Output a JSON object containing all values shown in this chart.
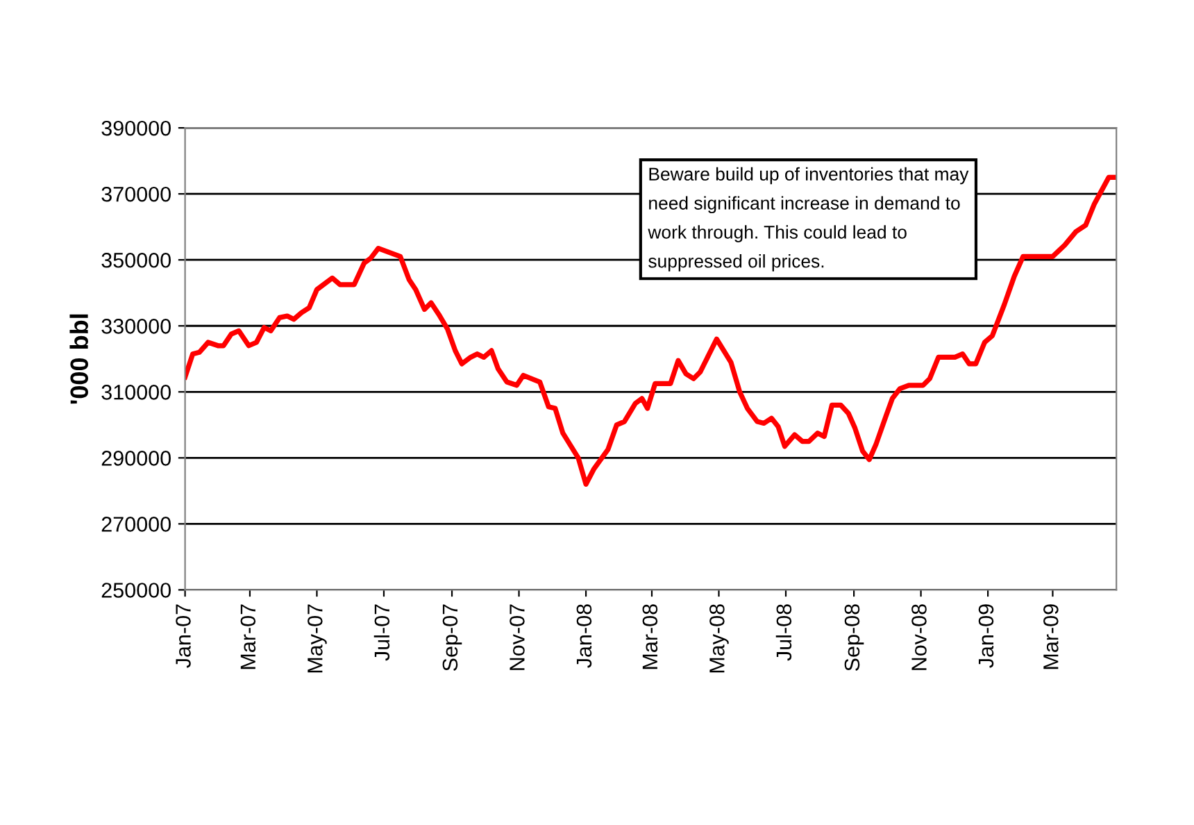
{
  "chart_data": {
    "type": "line",
    "ylabel": "'000 bbl",
    "annotations": [
      "Beware build up of inventories that may\nneed significant increase in demand to\nwork through. This could lead to\nsuppressed oil prices."
    ],
    "x": [
      "2007-01-01",
      "2007-01-08",
      "2007-01-14",
      "2007-01-22",
      "2007-01-31",
      "2007-02-05",
      "2007-02-12",
      "2007-02-19",
      "2007-02-28",
      "2007-03-07",
      "2007-03-14",
      "2007-03-20",
      "2007-03-28",
      "2007-04-04",
      "2007-04-10",
      "2007-04-17",
      "2007-04-24",
      "2007-05-01",
      "2007-05-15",
      "2007-05-22",
      "2007-06-04",
      "2007-06-13",
      "2007-06-19",
      "2007-06-26",
      "2007-07-16",
      "2007-07-24",
      "2007-07-30",
      "2007-08-07",
      "2007-08-13",
      "2007-08-20",
      "2007-08-28",
      "2007-09-04",
      "2007-09-10",
      "2007-09-18",
      "2007-09-24",
      "2007-09-30",
      "2007-10-07",
      "2007-10-13",
      "2007-10-21",
      "2007-10-30",
      "2007-11-05",
      "2007-11-20",
      "2007-11-28",
      "2007-12-04",
      "2007-12-11",
      "2007-12-25",
      "2008-01-01",
      "2008-01-08",
      "2008-01-21",
      "2008-01-29",
      "2008-02-05",
      "2008-02-15",
      "2008-02-21",
      "2008-02-26",
      "2008-03-04",
      "2008-03-18",
      "2008-03-25",
      "2008-04-01",
      "2008-04-08",
      "2008-04-14",
      "2008-04-20",
      "2008-04-29",
      "2008-05-12",
      "2008-05-20",
      "2008-05-27",
      "2008-06-05",
      "2008-06-11",
      "2008-06-18",
      "2008-06-24",
      "2008-06-30",
      "2008-07-09",
      "2008-07-16",
      "2008-07-22",
      "2008-07-30",
      "2008-08-05",
      "2008-08-12",
      "2008-08-20",
      "2008-08-27",
      "2008-09-02",
      "2008-09-09",
      "2008-09-15",
      "2008-09-21",
      "2008-09-30",
      "2008-10-06",
      "2008-10-13",
      "2008-10-21",
      "2008-11-03",
      "2008-11-09",
      "2008-11-17",
      "2008-12-02",
      "2008-12-09",
      "2008-12-15",
      "2008-12-21",
      "2008-12-29",
      "2009-01-05",
      "2009-01-16",
      "2009-01-25",
      "2009-02-02",
      "2009-03-01",
      "2009-03-12",
      "2009-03-22",
      "2009-03-31",
      "2009-04-08",
      "2009-04-21",
      "2009-04-28"
    ],
    "series": [
      {
        "color": "#ff0000",
        "values": [
          314500,
          321500,
          322000,
          325000,
          324000,
          324000,
          327500,
          328500,
          324000,
          325000,
          329500,
          328500,
          332500,
          333000,
          332000,
          334000,
          335500,
          341000,
          344500,
          342500,
          342500,
          349000,
          350500,
          353500,
          351000,
          344000,
          341000,
          335000,
          337000,
          333500,
          329000,
          322500,
          318500,
          320500,
          321500,
          320500,
          322500,
          317000,
          313000,
          312000,
          315000,
          313000,
          305500,
          305000,
          297500,
          290000,
          282000,
          286500,
          292500,
          300000,
          301000,
          306500,
          308000,
          305000,
          312500,
          312500,
          319500,
          315500,
          314000,
          316000,
          320000,
          326000,
          319000,
          310000,
          305000,
          301000,
          300500,
          302000,
          299500,
          293500,
          297000,
          295000,
          295000,
          297500,
          296500,
          306000,
          306000,
          303500,
          299000,
          292000,
          289500,
          294000,
          302500,
          308000,
          311000,
          312000,
          312000,
          314000,
          320500,
          320500,
          321500,
          318500,
          318500,
          325000,
          327000,
          336500,
          345000,
          351000,
          351000,
          354500,
          358500,
          360500,
          367000,
          375000,
          375000
        ]
      }
    ],
    "xlim": [
      "2007-01-01",
      "2009-04-28"
    ],
    "xticks": [
      {
        "value": "2007-01-01",
        "label": "Jan-07"
      },
      {
        "value": "2007-03-01",
        "label": "Mar-07"
      },
      {
        "value": "2007-05-01",
        "label": "May-07"
      },
      {
        "value": "2007-07-01",
        "label": "Jul-07"
      },
      {
        "value": "2007-09-01",
        "label": "Sep-07"
      },
      {
        "value": "2007-11-01",
        "label": "Nov-07"
      },
      {
        "value": "2008-01-01",
        "label": "Jan-08"
      },
      {
        "value": "2008-03-01",
        "label": "Mar-08"
      },
      {
        "value": "2008-05-01",
        "label": "May-08"
      },
      {
        "value": "2008-07-01",
        "label": "Jul-08"
      },
      {
        "value": "2008-09-01",
        "label": "Sep-08"
      },
      {
        "value": "2008-11-01",
        "label": "Nov-08"
      },
      {
        "value": "2009-01-01",
        "label": "Jan-09"
      },
      {
        "value": "2009-03-01",
        "label": "Mar-09"
      }
    ],
    "ylim": [
      250000,
      390000
    ],
    "yticks": [
      250000,
      270000,
      290000,
      310000,
      330000,
      350000,
      370000,
      390000
    ],
    "grid": "y",
    "legend": false,
    "marker": "none",
    "line_style": "solid"
  }
}
